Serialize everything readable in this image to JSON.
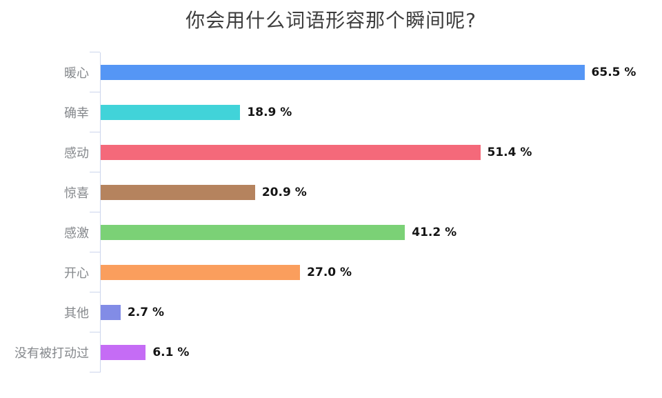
{
  "chart_data": {
    "type": "bar",
    "orientation": "horizontal",
    "title": "你会用什么词语形容那个瞬间呢?",
    "categories": [
      "暖心",
      "确幸",
      "感动",
      "惊喜",
      "感激",
      "开心",
      "其他",
      "没有被打动过"
    ],
    "values": [
      65.5,
      18.9,
      51.4,
      20.9,
      41.2,
      27.0,
      2.7,
      6.1
    ],
    "value_labels": [
      "65.5 %",
      "18.9 %",
      "51.4 %",
      "20.9 %",
      "41.2 %",
      "27.0 %",
      "2.7 %",
      "6.1 %"
    ],
    "bar_colors": [
      "#5596f5",
      "#41d3d9",
      "#f4697a",
      "#b5835e",
      "#7bd176",
      "#fa9e5d",
      "#828ce6",
      "#c56cf5"
    ],
    "xlim": [
      0,
      76
    ],
    "xlabel": "",
    "ylabel": "",
    "grid": false,
    "legend": false,
    "axis_color": "#ccd5ec",
    "category_label_color": "#85888c",
    "value_label_color": "#141414",
    "title_color": "#3d3d3d",
    "background_color": "#ffffff"
  }
}
